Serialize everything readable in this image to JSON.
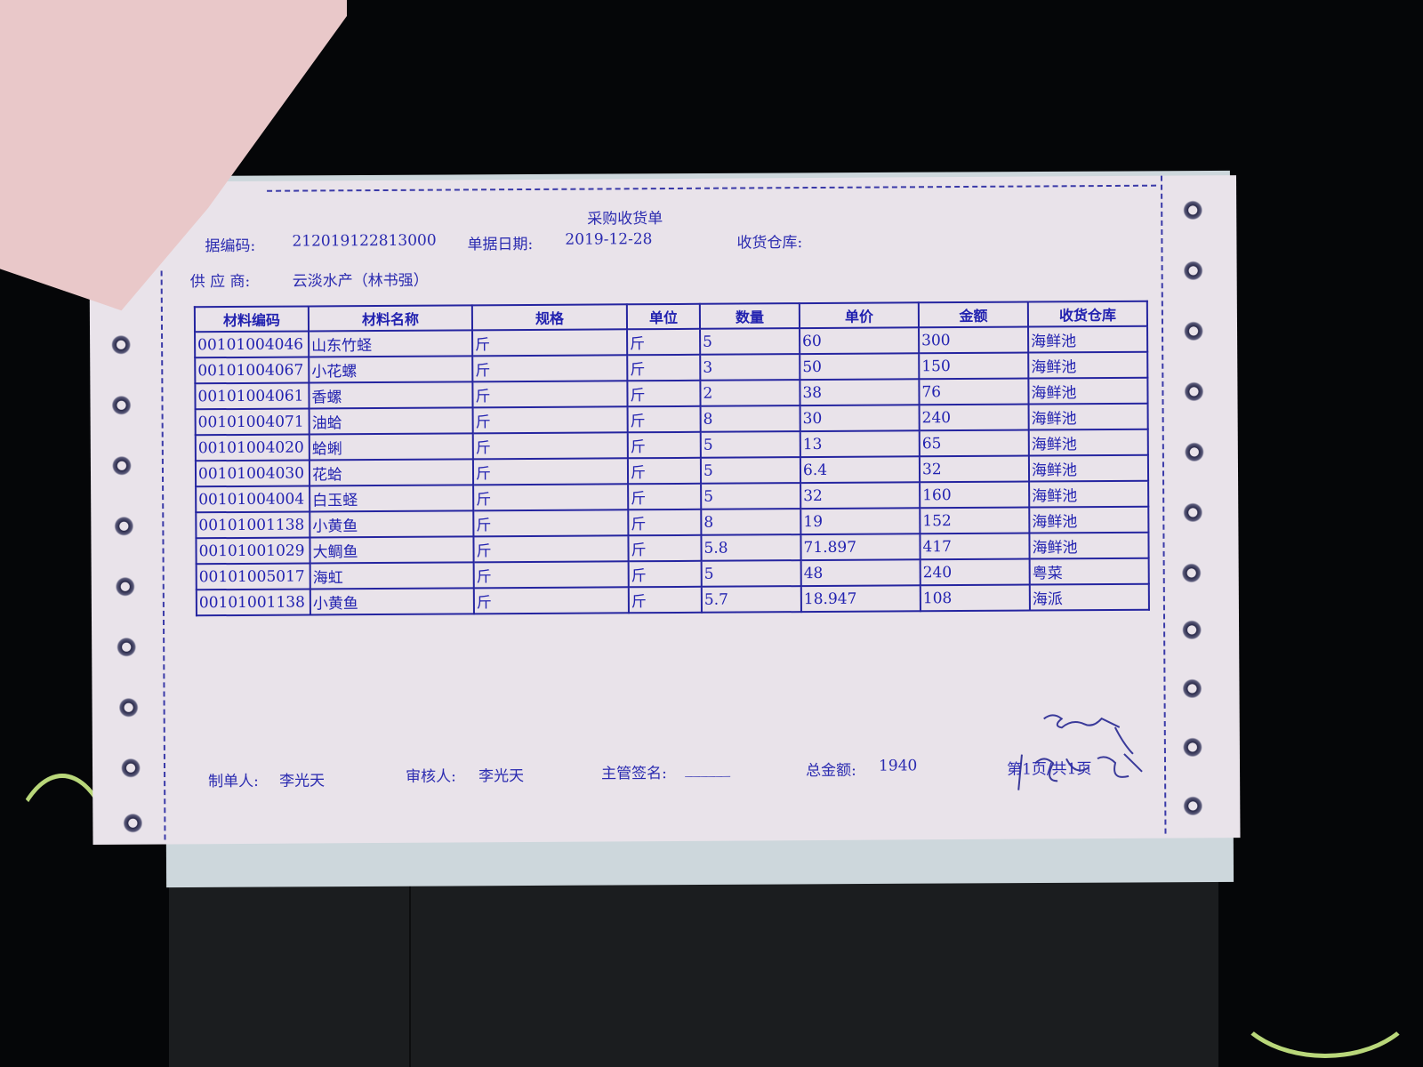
{
  "document": {
    "title": "采购收货单",
    "doc_no_label": "据编码:",
    "doc_no": "212019122813000",
    "date_label": "单据日期:",
    "date": "2019-12-28",
    "warehouse_label": "收货仓库:",
    "supplier_label": "供 应 商:",
    "supplier": "云淡水产（林书强）"
  },
  "table": {
    "headers": [
      "材料编码",
      "材料名称",
      "规格",
      "单位",
      "数量",
      "单价",
      "金额",
      "收货仓库"
    ],
    "rows": [
      [
        "00101004046",
        "山东竹蛏",
        "斤",
        "斤",
        "5",
        "60",
        "300",
        "海鲜池"
      ],
      [
        "00101004067",
        "小花螺",
        "斤",
        "斤",
        "3",
        "50",
        "150",
        "海鲜池"
      ],
      [
        "00101004061",
        "香螺",
        "斤",
        "斤",
        "2",
        "38",
        "76",
        "海鲜池"
      ],
      [
        "00101004071",
        "油蛤",
        "斤",
        "斤",
        "8",
        "30",
        "240",
        "海鲜池"
      ],
      [
        "00101004020",
        "蛤蜊",
        "斤",
        "斤",
        "5",
        "13",
        "65",
        "海鲜池"
      ],
      [
        "00101004030",
        "花蛤",
        "斤",
        "斤",
        "5",
        "6.4",
        "32",
        "海鲜池"
      ],
      [
        "00101004004",
        "白玉蛏",
        "斤",
        "斤",
        "5",
        "32",
        "160",
        "海鲜池"
      ],
      [
        "00101001138",
        "小黄鱼",
        "斤",
        "斤",
        "8",
        "19",
        "152",
        "海鲜池"
      ],
      [
        "00101001029",
        "大鲷鱼",
        "斤",
        "斤",
        "5.8",
        "71.897",
        "417",
        "海鲜池"
      ],
      [
        "00101005017",
        "海虹",
        "斤",
        "斤",
        "5",
        "48",
        "240",
        "粤菜"
      ],
      [
        "00101001138",
        "小黄鱼",
        "斤",
        "斤",
        "5.7",
        "18.947",
        "108",
        "海派"
      ]
    ]
  },
  "footer": {
    "maker_label": "制单人:",
    "maker": "李光天",
    "reviewer_label": "审核人:",
    "reviewer": "李光天",
    "supervisor_label": "主管签名:",
    "supervisor_blank": "______",
    "total_label": "总金额:",
    "total": "1940",
    "page": "第1页/共1页"
  },
  "colors": {
    "ink": "#2b2bb0",
    "paper": "#e9e3ea",
    "background": "#050608"
  }
}
